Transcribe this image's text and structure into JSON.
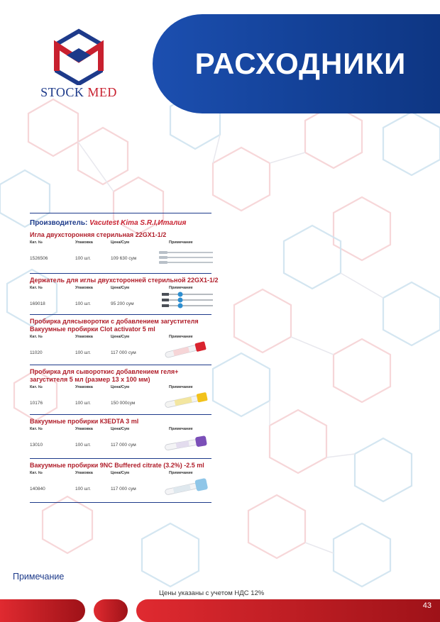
{
  "brand": {
    "name_part1": "STOCK",
    "name_part2": "MED"
  },
  "header": {
    "title": "РАСХОДНИКИ"
  },
  "manufacturer": {
    "prefix": "Производитель:",
    "name": "Vacutest Kima S.R.I,Италия"
  },
  "columns": {
    "cat": "Кат. №",
    "pack": "Упаковка",
    "price": "Цена/Сум",
    "note": "Примечание"
  },
  "products": [
    {
      "title": "Игла двухсторонняя стерильная 22GX1-1/2",
      "cat": "1526506",
      "pack": "100 шт.",
      "price": "109 630 сум",
      "image": "needle"
    },
    {
      "title": "Держатель для иглы двухсторонней стерильной 22GX1-1/2",
      "cat": "169018",
      "pack": "100 шт.",
      "price": "95 200 сум",
      "image": "needle-blue"
    },
    {
      "title": "Пробирка длясыворотки с добавлением загустителя Вакуумные пробирки Clot activator 5 ml",
      "cat": "11020",
      "pack": "100 шт.",
      "price": "117 000 сум",
      "image": "tube-red"
    },
    {
      "title": "Пробирка для сывороткис добавлением геля+ загустителя 5 мл (размер 13 х 100 мм)",
      "cat": "10176",
      "pack": "100 шт.",
      "price": "150 000сум",
      "image": "tube-yellow"
    },
    {
      "title": "Вакуумные пробирки К3EDTA 3 ml",
      "cat": "13010",
      "pack": "100 шт.",
      "price": "117 000 сум",
      "image": "tube-purple"
    },
    {
      "title": "Вакуумные пробирки 9NC Buffered citrate (3.2%) -2.5 ml",
      "cat": "140840",
      "pack": "100 шт.",
      "price": "117 000 сум",
      "image": "tube-lightblue"
    }
  ],
  "footer": {
    "note_label": "Примечание",
    "vat_note": "Цены указаны с учетом НДС 12%",
    "page_number": "43"
  },
  "colors": {
    "brand_blue": "#1d3a8a",
    "brand_red": "#c8202f",
    "banner_blue": "#134197",
    "footer_red": "#c0161f"
  }
}
